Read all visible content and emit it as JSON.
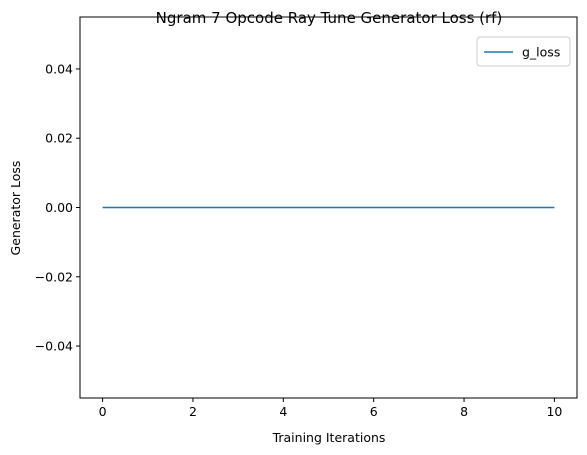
{
  "chart_data": {
    "type": "line",
    "title": "Ngram 7 Opcode Ray Tune Generator Loss (rf)",
    "xlabel": "Training Iterations",
    "ylabel": "Generator Loss",
    "xlim": [
      -0.5,
      10.5
    ],
    "ylim": [
      -0.055,
      0.055
    ],
    "x_ticks": [
      0,
      2,
      4,
      6,
      8,
      10
    ],
    "x_tick_labels": [
      "0",
      "2",
      "4",
      "6",
      "8",
      "10"
    ],
    "y_ticks": [
      0.04,
      0.02,
      0.0,
      -0.02,
      -0.04
    ],
    "y_tick_labels": [
      "0.04",
      "0.02",
      "0.00",
      "−0.02",
      "−0.04"
    ],
    "grid": false,
    "legend_position": "top-right",
    "series": [
      {
        "name": "g_loss",
        "color": "#1f77b4",
        "x": [
          0,
          1,
          2,
          3,
          4,
          5,
          6,
          7,
          8,
          9,
          10
        ],
        "y": [
          0,
          0,
          0,
          0,
          0,
          0,
          0,
          0,
          0,
          0,
          0
        ]
      }
    ]
  }
}
